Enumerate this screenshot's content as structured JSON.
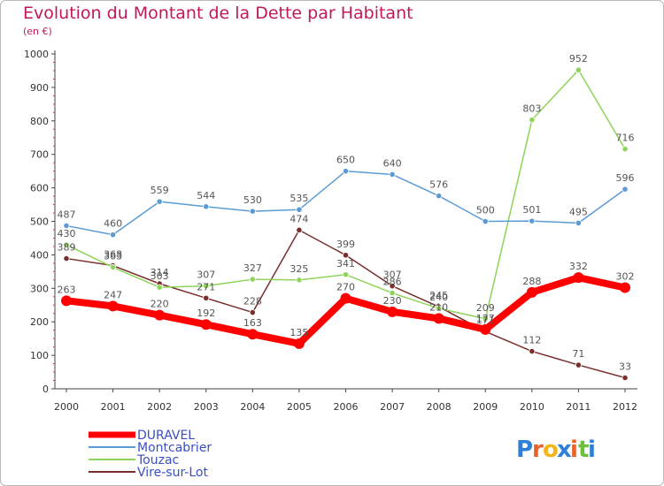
{
  "chart_data": {
    "type": "line",
    "title": "Evolution du Montant de la Dette par Habitant",
    "subtitle": "(en €)",
    "x": [
      "2000",
      "2001",
      "2002",
      "2003",
      "2004",
      "2005",
      "2006",
      "2007",
      "2008",
      "2009",
      "2010",
      "2011",
      "2012"
    ],
    "ylim": [
      0,
      1000
    ],
    "yticks": [
      0,
      100,
      200,
      300,
      400,
      500,
      600,
      700,
      800,
      900,
      1000
    ],
    "grid": false,
    "legend_position": "bottom-left",
    "series": [
      {
        "name": "DURAVEL",
        "color": "#ff0000",
        "values": [
          263,
          247,
          220,
          192,
          163,
          135,
          270,
          230,
          210,
          177,
          288,
          332,
          302
        ]
      },
      {
        "name": "Montcabrier",
        "color": "#5b9bd5",
        "values": [
          487,
          460,
          559,
          544,
          530,
          535,
          650,
          640,
          576,
          500,
          501,
          495,
          596
        ]
      },
      {
        "name": "Touzac",
        "color": "#8fd45a",
        "values": [
          430,
          363,
          303,
          307,
          327,
          325,
          341,
          286,
          240,
          209,
          803,
          952,
          716
        ]
      },
      {
        "name": "Vire-sur-Lot",
        "color": "#7a2e2e",
        "values": [
          389,
          368,
          314,
          271,
          228,
          474,
          399,
          307,
          245,
          171,
          112,
          71,
          33
        ]
      }
    ]
  },
  "logo": {
    "text": "Proxiti",
    "letters": [
      "P",
      "r",
      "o",
      "x",
      "i",
      "t",
      "i"
    ],
    "colors": [
      "#2e7fd6",
      "#e8622a",
      "#f2b51a",
      "#2e7fd6",
      "#e8622a",
      "#6cbf3a",
      "#2e7fd6"
    ]
  }
}
